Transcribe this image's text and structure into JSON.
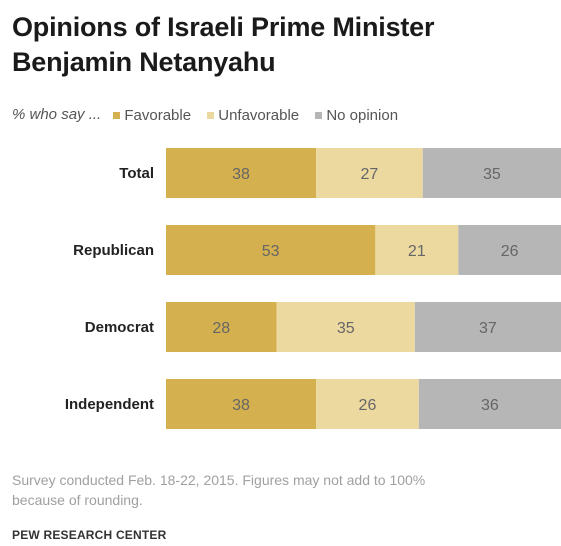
{
  "title_line1": "Opinions of Israeli Prime Minister",
  "title_line2": "Benjamin Netanyahu",
  "legend_prefix": "% who say ...",
  "note_line1": "Survey conducted Feb. 18-22, 2015. Figures may not add to 100%",
  "note_line2": "because of rounding.",
  "source": "PEW RESEARCH CENTER",
  "colors": {
    "favorable": "#d4b04e",
    "unfavorable": "#ecd9a0",
    "no_opinion": "#b6b6b6",
    "label_text": "#666666"
  },
  "chart_data": {
    "type": "bar",
    "orientation": "horizontal",
    "stacked": true,
    "categories": [
      "Total",
      "Republican",
      "Democrat",
      "Independent"
    ],
    "series": [
      {
        "name": "Favorable",
        "values": [
          38,
          53,
          28,
          38
        ]
      },
      {
        "name": "Unfavorable",
        "values": [
          27,
          21,
          35,
          26
        ]
      },
      {
        "name": "No opinion",
        "values": [
          35,
          26,
          37,
          36
        ]
      }
    ],
    "xlim": [
      0,
      100
    ],
    "grid": false,
    "legend": "top"
  }
}
